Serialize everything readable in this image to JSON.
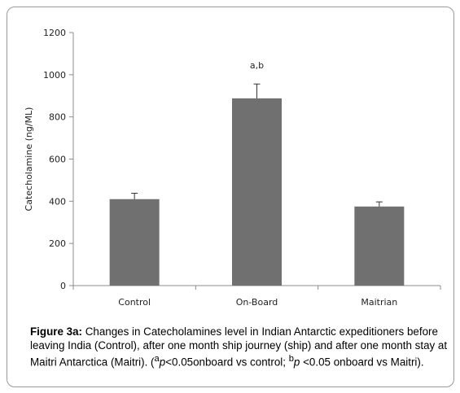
{
  "chart_data": {
    "type": "bar",
    "categories": [
      "Control",
      "On-Board",
      "Maitrian"
    ],
    "values": [
      410,
      888,
      375
    ],
    "errors": [
      28,
      68,
      22
    ],
    "annotations": [
      "",
      "a,b",
      ""
    ],
    "ylabel": "Catecholamine (ng/ML)",
    "xlabel": "",
    "title": "",
    "ylim": [
      0,
      1200
    ],
    "yticks": [
      0,
      200,
      400,
      600,
      800,
      1000,
      1200
    ],
    "bar_color": "#707070",
    "grid": false
  },
  "caption": {
    "lead": "Figure 3a:",
    "text_1": " Changes in Catecholamines level in Indian Antarctic expeditioners before leaving India (Control), after one month ship journey (ship) and after one month stay at Maitri Antarctica (Maitri). (",
    "sup_a": "a",
    "p_1": "p",
    "text_2": "<0.05onboard vs control; ",
    "sup_b": "b",
    "p_2": "p",
    "text_3": " <0.05 onboard vs Maitri)."
  }
}
